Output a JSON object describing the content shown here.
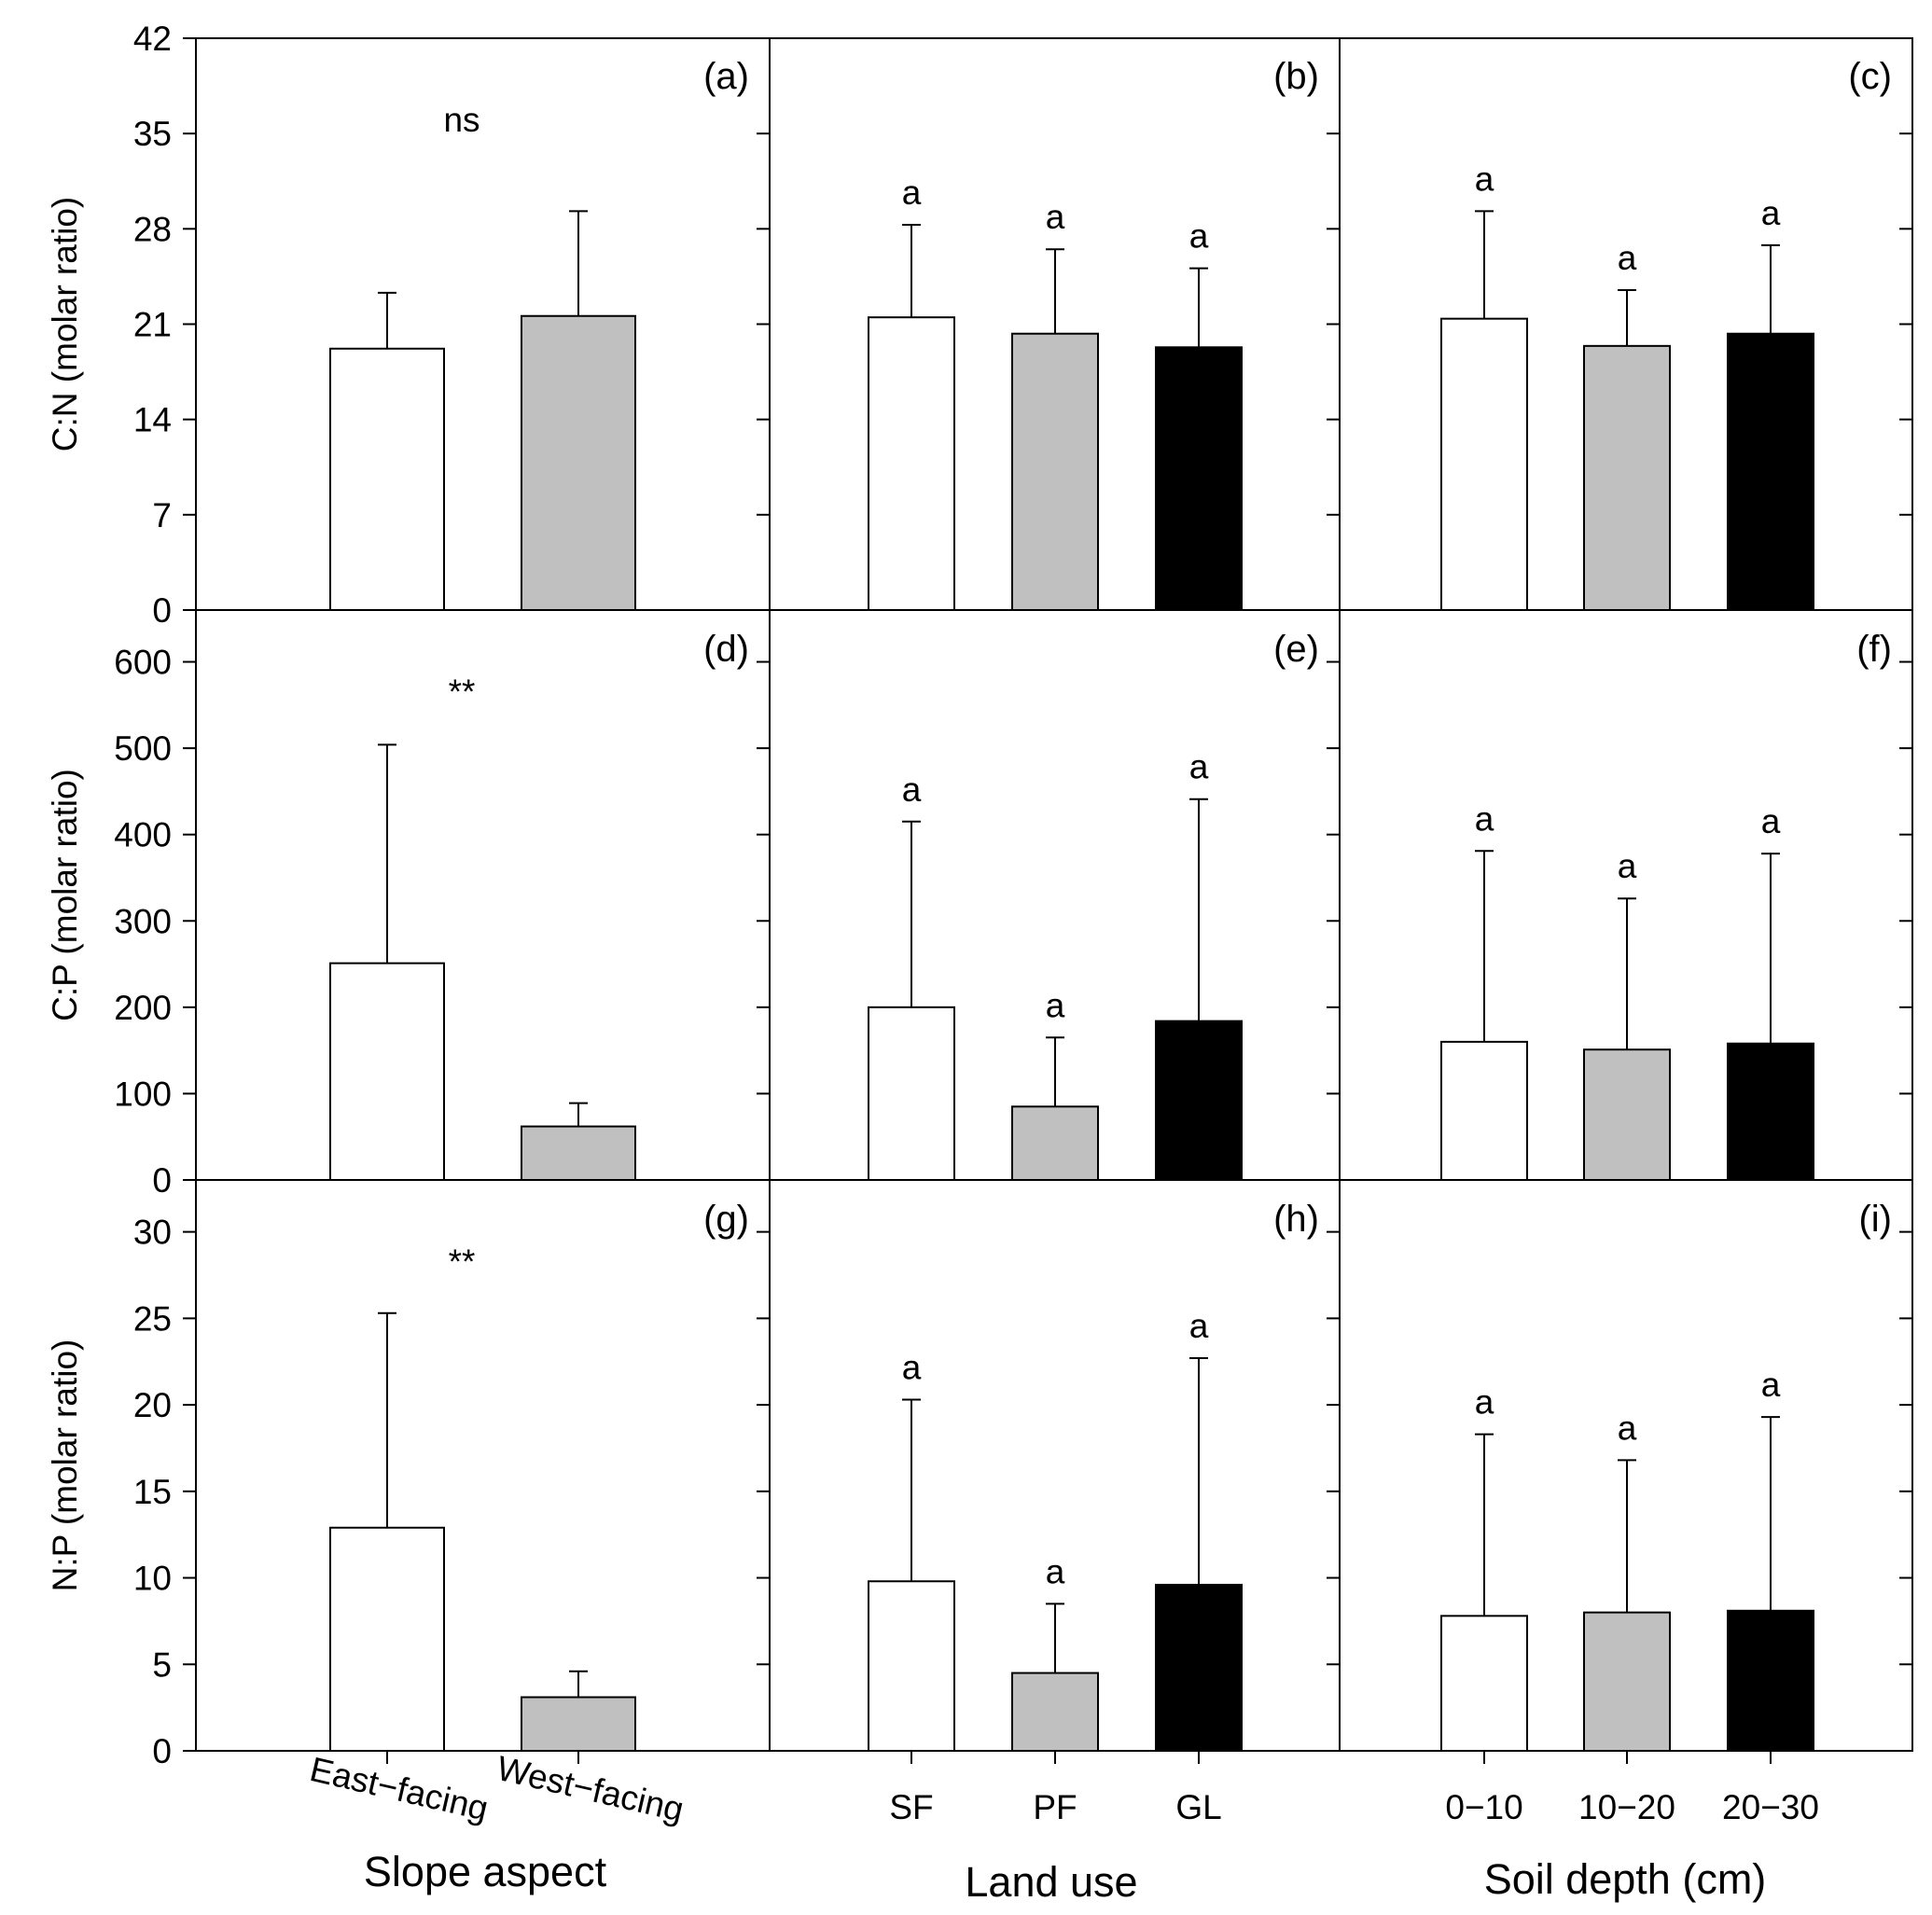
{
  "x_axes": [
    {
      "title": "Slope aspect",
      "tick_labels": [
        "East−facing",
        "West−facing"
      ]
    },
    {
      "title": "Land use",
      "tick_labels": [
        "SF",
        "PF",
        "GL"
      ]
    },
    {
      "title": "Soil depth (cm)",
      "tick_labels": [
        "0−10",
        "10−20",
        "20−30"
      ]
    }
  ],
  "rows": [
    {
      "ylabel": "C:N (molar ratio)",
      "ylim": [
        0,
        42
      ],
      "ticks": [
        "0",
        "7",
        "14",
        "21",
        "28",
        "35",
        "42"
      ]
    },
    {
      "ylabel": "C:P (molar ratio)",
      "ylim": [
        0,
        660
      ],
      "ticks": [
        "0",
        "100",
        "200",
        "300",
        "400",
        "500",
        "600"
      ]
    },
    {
      "ylabel": "N:P (molar ratio)",
      "ylim": [
        0,
        33
      ],
      "ticks": [
        "0",
        "5",
        "10",
        "15",
        "20",
        "25",
        "30"
      ]
    }
  ],
  "colors": {
    "white": "#ffffff",
    "gray": "#c0c0c0",
    "black": "#000000",
    "axis": "#000000"
  },
  "chart_data": [
    {
      "type": "bar",
      "panel": "(a)",
      "row": 0,
      "col": 0,
      "categories": [
        "East−facing",
        "West−facing"
      ],
      "values": [
        19.2,
        21.6
      ],
      "errors": [
        4.1,
        7.7
      ],
      "fills": [
        "white",
        "gray"
      ],
      "annotation": "ns",
      "labels": [
        "",
        ""
      ]
    },
    {
      "type": "bar",
      "panel": "(b)",
      "row": 0,
      "col": 1,
      "categories": [
        "SF",
        "PF",
        "GL"
      ],
      "values": [
        21.5,
        20.3,
        19.3
      ],
      "errors": [
        6.8,
        6.2,
        5.8
      ],
      "fills": [
        "white",
        "gray",
        "black"
      ],
      "labels": [
        "a",
        "a",
        "a"
      ]
    },
    {
      "type": "bar",
      "panel": "(c)",
      "row": 0,
      "col": 2,
      "categories": [
        "0−10",
        "10−20",
        "20−30"
      ],
      "values": [
        21.4,
        19.4,
        20.3
      ],
      "errors": [
        7.9,
        4.1,
        6.5
      ],
      "fills": [
        "white",
        "gray",
        "black"
      ],
      "labels": [
        "a",
        "a",
        "a"
      ]
    },
    {
      "type": "bar",
      "panel": "(d)",
      "row": 1,
      "col": 0,
      "categories": [
        "East−facing",
        "West−facing"
      ],
      "values": [
        251,
        62
      ],
      "errors": [
        253,
        27
      ],
      "fills": [
        "white",
        "gray"
      ],
      "annotation": "**",
      "labels": [
        "",
        ""
      ]
    },
    {
      "type": "bar",
      "panel": "(e)",
      "row": 1,
      "col": 1,
      "categories": [
        "SF",
        "PF",
        "GL"
      ],
      "values": [
        200,
        85,
        184
      ],
      "errors": [
        215,
        80,
        257
      ],
      "fills": [
        "white",
        "gray",
        "black"
      ],
      "labels": [
        "a",
        "a",
        "a"
      ]
    },
    {
      "type": "bar",
      "panel": "(f)",
      "row": 1,
      "col": 2,
      "categories": [
        "0−10",
        "10−20",
        "20−30"
      ],
      "values": [
        160,
        151,
        158
      ],
      "errors": [
        221,
        175,
        220
      ],
      "fills": [
        "white",
        "gray",
        "black"
      ],
      "labels": [
        "a",
        "a",
        "a"
      ]
    },
    {
      "type": "bar",
      "panel": "(g)",
      "row": 2,
      "col": 0,
      "categories": [
        "East−facing",
        "West−facing"
      ],
      "values": [
        12.9,
        3.1
      ],
      "errors": [
        12.4,
        1.5
      ],
      "fills": [
        "white",
        "gray"
      ],
      "annotation": "**",
      "labels": [
        "",
        ""
      ]
    },
    {
      "type": "bar",
      "panel": "(h)",
      "row": 2,
      "col": 1,
      "categories": [
        "SF",
        "PF",
        "GL"
      ],
      "values": [
        9.8,
        4.5,
        9.6
      ],
      "errors": [
        10.5,
        4.0,
        13.1
      ],
      "fills": [
        "white",
        "gray",
        "black"
      ],
      "labels": [
        "a",
        "a",
        "a"
      ]
    },
    {
      "type": "bar",
      "panel": "(i)",
      "row": 2,
      "col": 2,
      "categories": [
        "0−10",
        "10−20",
        "20−30"
      ],
      "values": [
        7.8,
        8.0,
        8.1
      ],
      "errors": [
        10.5,
        8.8,
        11.2
      ],
      "fills": [
        "white",
        "gray",
        "black"
      ],
      "labels": [
        "a",
        "a",
        "a"
      ]
    }
  ]
}
